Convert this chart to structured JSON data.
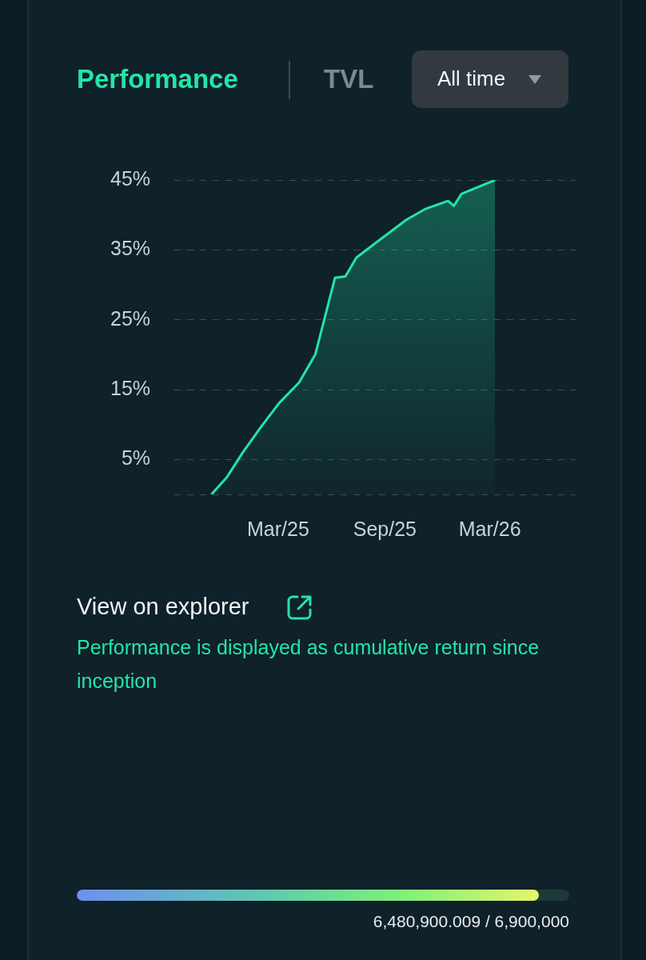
{
  "chart_data": {
    "type": "area",
    "x": [
      "2024-11-06",
      "2024-12-03",
      "2024-12-30",
      "2025-01-30",
      "2025-03-03",
      "2025-04-06",
      "2025-05-04",
      "2025-06-07",
      "2025-06-25",
      "2025-07-14",
      "2025-08-21",
      "2025-10-08",
      "2025-11-11",
      "2025-12-19",
      "2025-12-29",
      "2026-01-11",
      "2026-03-10"
    ],
    "series": [
      {
        "color": "#22e6a8",
        "values": [
          0,
          2.5,
          6.0,
          9.6,
          13.1,
          16.0,
          20.0,
          31.0,
          31.2,
          33.9,
          36.3,
          39.3,
          40.9,
          42.0,
          41.3,
          43.0,
          45.0
        ]
      }
    ],
    "xlim": [
      "2024-09-03",
      "2026-07-27"
    ],
    "xticks": [
      {
        "value": "2025-03-01",
        "label": "Mar/25"
      },
      {
        "value": "2025-09-01",
        "label": "Sep/25"
      },
      {
        "value": "2026-03-01",
        "label": "Mar/26"
      }
    ],
    "ylim": [
      0,
      45
    ],
    "yticks": [
      {
        "value": 0,
        "label": null
      },
      {
        "value": 5,
        "label": "5%"
      },
      {
        "value": 15,
        "label": "15%"
      },
      {
        "value": 25,
        "label": "25%"
      },
      {
        "value": 35,
        "label": "35%"
      },
      {
        "value": 45,
        "label": "45%"
      }
    ],
    "grid": "y",
    "legend": false,
    "marker": "none",
    "line_style": "solid",
    "annotations": [
      "Performance",
      "TVL",
      "All time",
      "View on explorer",
      "Performance is displayed as cumulative return since inception",
      "6,480,900.009 / 6,900,000"
    ]
  }
}
